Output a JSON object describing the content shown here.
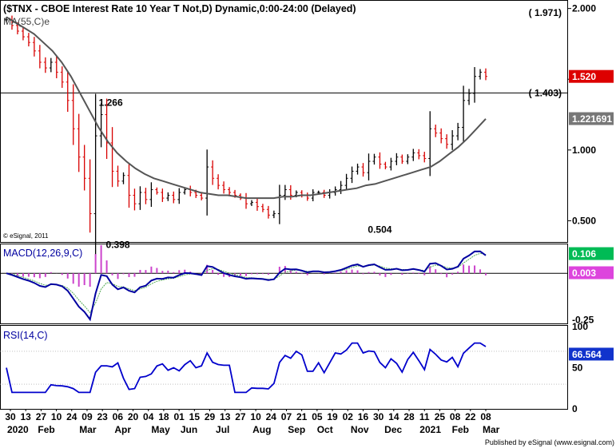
{
  "title": "($TNX - CBOE Interest Rate 10 Year T Not,D) Dynamic,0:00-24:00 (Delayed)",
  "ma_label": "MA(55,C)e",
  "copyright": "© eSignal, 2011",
  "publisher": "Published by eSignal (www.esignal.com)",
  "colors": {
    "up": "#000000",
    "down": "#d80000",
    "ma": "#555555",
    "macd": "#0000a0",
    "signal": "#55aa55",
    "hist": "#cc44cc",
    "rsi": "#0000cc",
    "price_badge": "#dd0000"
  },
  "price_panel": {
    "axis_ticks": [
      {
        "v": 2.0,
        "label": "2.000"
      },
      {
        "v": 1.5,
        "label": "1.500"
      },
      {
        "v": 1.0,
        "label": "1.000"
      },
      {
        "v": 0.5,
        "label": "0.500"
      }
    ],
    "badges": [
      {
        "v": 1.971,
        "label": "( 1.971)",
        "style": "bracket"
      },
      {
        "v": 1.52,
        "label": "1.520",
        "style": "red"
      },
      {
        "v": 1.403,
        "label": "( 1.403)",
        "style": "bracket"
      },
      {
        "v": 1.221691,
        "label": "1.221691",
        "style": "gray"
      }
    ],
    "hline": 1.403,
    "annotations": [
      {
        "text": "1.266",
        "date_index": 16,
        "v": 1.266,
        "pos": "right"
      },
      {
        "text": "0.398",
        "date_index": 20,
        "v": 0.398,
        "pos": "below"
      },
      {
        "text": "0.504",
        "date_index": 67,
        "v": 0.504,
        "pos": "below"
      }
    ]
  },
  "macd_panel": {
    "label": "MACD(12,26,9,C)",
    "axis_ticks": [
      {
        "v": -0.25,
        "label": "-0.25"
      }
    ],
    "badges": [
      {
        "v": 0.106,
        "label": "0.106",
        "style": "green"
      },
      {
        "v": 0.003,
        "label": "0.003",
        "style": "magenta"
      }
    ]
  },
  "rsi_panel": {
    "label": "RSI(14,C)",
    "axis_ticks": [
      {
        "v": 100,
        "label": "100"
      },
      {
        "v": 50,
        "label": "50"
      },
      {
        "v": 0,
        "label": "0"
      }
    ],
    "badges": [
      {
        "v": 66.564,
        "label": "66.564",
        "style": "blue"
      }
    ]
  },
  "x_ticks": [
    "30",
    "13",
    "27",
    "10",
    "24",
    "09",
    "23",
    "06",
    "20",
    "04",
    "18",
    "01",
    "15",
    "29",
    "13",
    "27",
    "10",
    "24",
    "07",
    "21",
    "05",
    "19",
    "02",
    "16",
    "30",
    "14",
    "28",
    "11",
    "25",
    "08",
    "22",
    "08"
  ],
  "month_labels": [
    {
      "label": "2020",
      "tick": 0
    },
    {
      "label": "Feb",
      "tick": 2
    },
    {
      "label": "Mar",
      "tick": 4.7
    },
    {
      "label": "Apr",
      "tick": 7
    },
    {
      "label": "May",
      "tick": 9.4
    },
    {
      "label": "Jun",
      "tick": 11.3
    },
    {
      "label": "Jul",
      "tick": 13.6
    },
    {
      "label": "Aug",
      "tick": 16
    },
    {
      "label": "Sep",
      "tick": 18.3
    },
    {
      "label": "Oct",
      "tick": 20.2
    },
    {
      "label": "Nov",
      "tick": 22.4
    },
    {
      "label": "Dec",
      "tick": 24.6
    },
    {
      "label": "2021",
      "tick": 26.9
    },
    {
      "label": "Feb",
      "tick": 29
    },
    {
      "label": "Mar",
      "tick": 31
    }
  ],
  "chart_data": {
    "type": "line",
    "title": "($TNX - CBOE Interest Rate 10 Year T Not,D) Dynamic,0:00-24:00 (Delayed)",
    "x_unit": "week",
    "x_start_label": "2020-01-30",
    "series": [
      {
        "name": "$TNX",
        "values": [
          1.92,
          1.88,
          1.84,
          1.8,
          1.76,
          1.7,
          1.62,
          1.58,
          1.62,
          1.55,
          1.48,
          1.35,
          1.15,
          0.95,
          0.8,
          0.55,
          1.1,
          1.25,
          1.05,
          0.85,
          0.78,
          0.82,
          0.68,
          0.62,
          0.7,
          0.65,
          0.72,
          0.7,
          0.66,
          0.68,
          0.65,
          0.7,
          0.72,
          0.7,
          0.68,
          0.66,
          0.88,
          0.8,
          0.75,
          0.72,
          0.7,
          0.68,
          0.66,
          0.62,
          0.63,
          0.6,
          0.58,
          0.54,
          0.55,
          0.68,
          0.72,
          0.68,
          0.7,
          0.68,
          0.66,
          0.7,
          0.7,
          0.68,
          0.7,
          0.72,
          0.75,
          0.8,
          0.85,
          0.88,
          0.84,
          0.92,
          0.95,
          0.9,
          0.88,
          0.92,
          0.95,
          0.92,
          0.95,
          0.98,
          0.96,
          0.94,
          1.15,
          1.12,
          1.08,
          1.04,
          1.1,
          1.16,
          1.35,
          1.4,
          1.52,
          1.55,
          1.52
        ]
      },
      {
        "name": "MA(55,C)e",
        "values": [
          1.94,
          1.9,
          1.86,
          1.82,
          1.76,
          1.7,
          1.62,
          1.52,
          1.4,
          1.28,
          1.16,
          1.06,
          0.98,
          0.92,
          0.87,
          0.83,
          0.8,
          0.78,
          0.76,
          0.74,
          0.72,
          0.7,
          0.69,
          0.68,
          0.68,
          0.67,
          0.66,
          0.66,
          0.66,
          0.66,
          0.67,
          0.67,
          0.68,
          0.68,
          0.69,
          0.7,
          0.71,
          0.72,
          0.73,
          0.75,
          0.76,
          0.78,
          0.8,
          0.82,
          0.84,
          0.86,
          0.88,
          0.92,
          0.97,
          1.02,
          1.08,
          1.15,
          1.22
        ]
      }
    ],
    "ylim": [
      0.35,
      2.06
    ],
    "macd": {
      "label": "MACD(12,26,9,C)",
      "last_macd": 0.106,
      "last_hist": 0.003,
      "ylim": [
        -0.27,
        0.16
      ]
    },
    "rsi": {
      "label": "RSI(14,C)",
      "last": 66.564,
      "ylim": [
        0,
        100
      ]
    }
  }
}
